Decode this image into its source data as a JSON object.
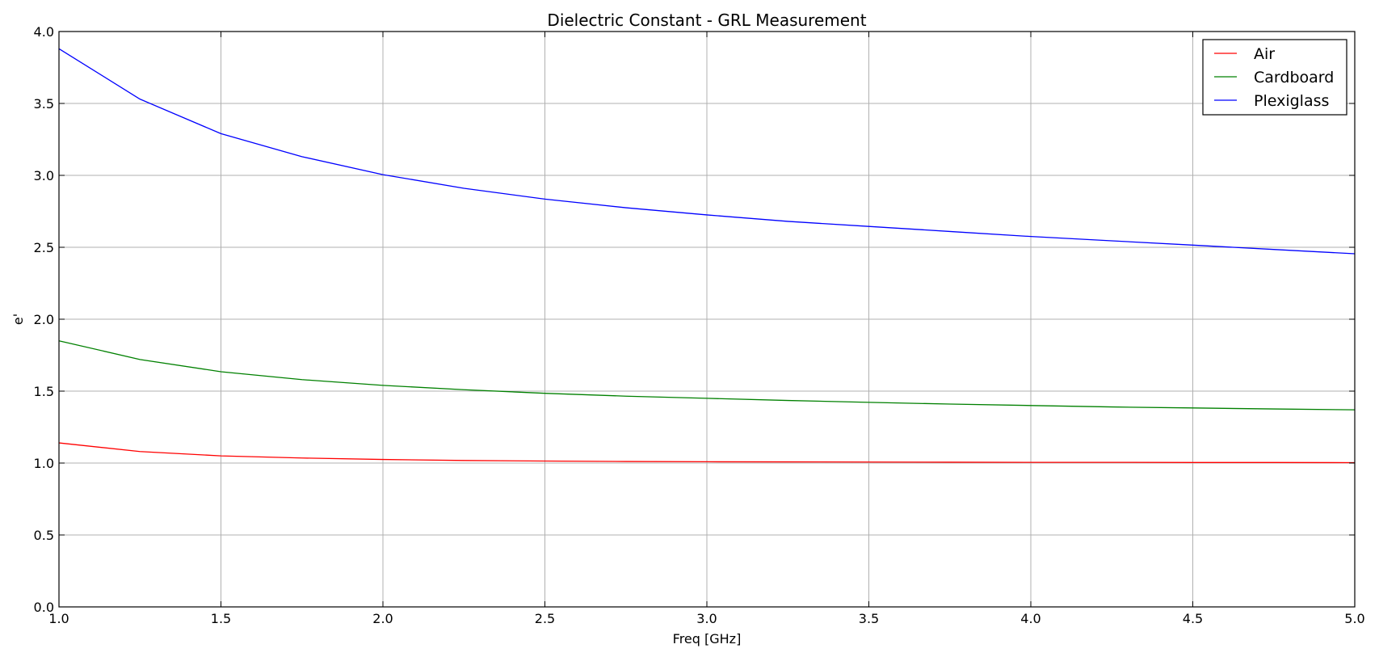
{
  "chart_data": {
    "type": "line",
    "title": "Dielectric Constant - GRL Measurement",
    "xlabel": "Freq [GHz]",
    "ylabel": "e'",
    "xlim": [
      1.0,
      5.0
    ],
    "ylim": [
      0.0,
      4.0
    ],
    "x_ticks": [
      "1.0",
      "1.5",
      "2.0",
      "2.5",
      "3.0",
      "3.5",
      "4.0",
      "4.5",
      "5.0"
    ],
    "y_ticks": [
      "0.0",
      "0.5",
      "1.0",
      "1.5",
      "2.0",
      "2.5",
      "3.0",
      "3.5",
      "4.0"
    ],
    "grid": true,
    "legend_position": "top-right",
    "x": [
      1.0,
      1.25,
      1.5,
      1.75,
      2.0,
      2.25,
      2.5,
      2.75,
      3.0,
      3.25,
      3.5,
      3.75,
      4.0,
      4.25,
      4.5,
      4.75,
      5.0
    ],
    "series": [
      {
        "name": "Air",
        "color": "#ff0000",
        "values": [
          1.14,
          1.08,
          1.05,
          1.035,
          1.025,
          1.018,
          1.014,
          1.011,
          1.009,
          1.008,
          1.007,
          1.006,
          1.005,
          1.005,
          1.004,
          1.004,
          1.003
        ]
      },
      {
        "name": "Cardboard",
        "color": "#008000",
        "values": [
          1.85,
          1.72,
          1.635,
          1.58,
          1.54,
          1.51,
          1.485,
          1.465,
          1.45,
          1.435,
          1.422,
          1.41,
          1.4,
          1.39,
          1.383,
          1.376,
          1.37
        ]
      },
      {
        "name": "Plexiglass",
        "color": "#0000ff",
        "values": [
          3.88,
          3.53,
          3.29,
          3.13,
          3.005,
          2.91,
          2.835,
          2.775,
          2.725,
          2.68,
          2.645,
          2.61,
          2.575,
          2.545,
          2.515,
          2.485,
          2.455
        ]
      }
    ]
  }
}
